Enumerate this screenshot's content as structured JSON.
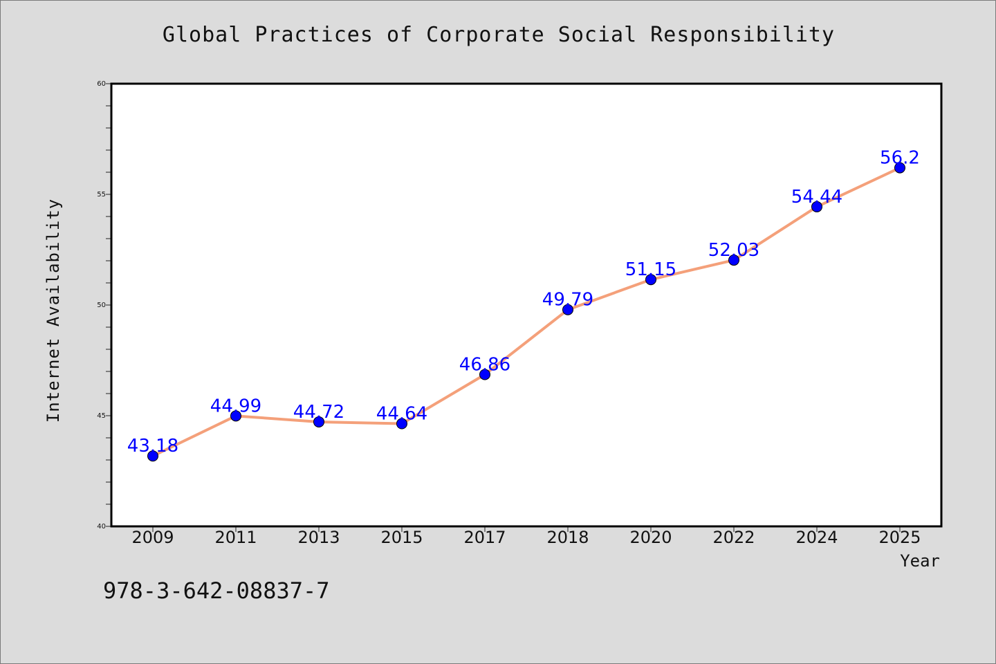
{
  "chart_data": {
    "type": "line",
    "title": "Global Practices of Corporate Social Responsibility",
    "xlabel": "Year",
    "ylabel": "Internet Availability",
    "categories": [
      "2009",
      "2011",
      "2013",
      "2015",
      "2017",
      "2018",
      "2020",
      "2022",
      "2024",
      "2025"
    ],
    "series": [
      {
        "values": [
          43.18,
          44.99,
          44.72,
          44.64,
          46.86,
          49.79,
          51.15,
          52.03,
          54.44,
          56.2
        ],
        "labels": [
          "43.18",
          "44.99",
          "44.72",
          "44.64",
          "46.86",
          "49.79",
          "51.15",
          "52.03",
          "54.44",
          "56.2"
        ],
        "line_color": "#f4a07a",
        "marker_color": "#0000ff"
      }
    ],
    "ylim": [
      40,
      60
    ],
    "yticks": [
      40,
      45,
      50,
      55,
      60
    ],
    "ytick_labels": [
      "40",
      "45",
      "50",
      "55",
      "60"
    ],
    "grid": false,
    "plot_background": "#ffffff",
    "page_background": "#dcdcdc"
  },
  "footer": {
    "isbn": "978-3-642-08837-7"
  }
}
